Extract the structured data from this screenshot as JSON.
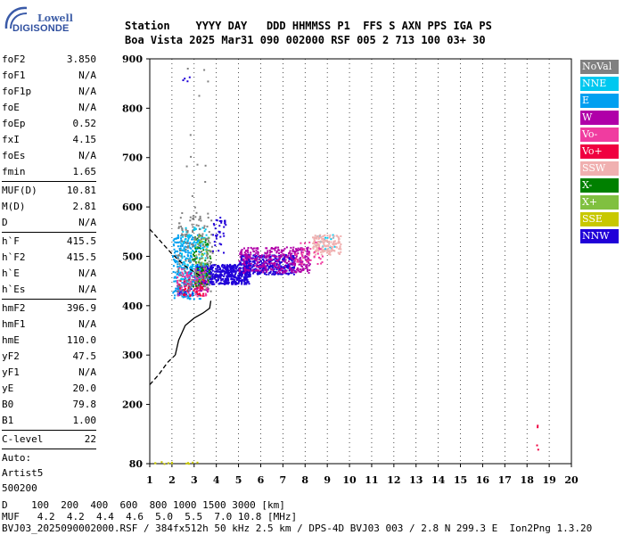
{
  "logo": {
    "line1": "Lowell",
    "line2": "DIGISONDE"
  },
  "header": {
    "labels": "Station    YYYY DAY   DDD HHMMSS P1  FFS S AXN PPS IGA PS",
    "values": "Boa Vista 2025 Mar31 090 002000 RSF 005 2 713 100 03+ 30"
  },
  "params": [
    {
      "type": "row",
      "label": "foF2",
      "value": "3.850"
    },
    {
      "type": "row",
      "label": "foF1",
      "value": "N/A"
    },
    {
      "type": "row",
      "label": "foF1p",
      "value": "N/A"
    },
    {
      "type": "row",
      "label": "foE",
      "value": "N/A"
    },
    {
      "type": "row",
      "label": "foEp",
      "value": "0.52"
    },
    {
      "type": "row",
      "label": "fxI",
      "value": "4.15"
    },
    {
      "type": "row",
      "label": "foEs",
      "value": "N/A"
    },
    {
      "type": "row",
      "label": "fmin",
      "value": "1.65"
    },
    {
      "type": "sep"
    },
    {
      "type": "row",
      "label": "MUF(D)",
      "value": "10.81"
    },
    {
      "type": "row",
      "label": "M(D)",
      "value": "2.81"
    },
    {
      "type": "row",
      "label": "D",
      "value": "N/A"
    },
    {
      "type": "sep"
    },
    {
      "type": "row",
      "label": "h`F",
      "value": "415.5"
    },
    {
      "type": "row",
      "label": "h`F2",
      "value": "415.5"
    },
    {
      "type": "row",
      "label": "h`E",
      "value": "N/A"
    },
    {
      "type": "row",
      "label": "h`Es",
      "value": "N/A"
    },
    {
      "type": "sep"
    },
    {
      "type": "row",
      "label": "hmF2",
      "value": "396.9"
    },
    {
      "type": "row",
      "label": "hmF1",
      "value": "N/A"
    },
    {
      "type": "row",
      "label": "hmE",
      "value": "110.0"
    },
    {
      "type": "row",
      "label": "yF2",
      "value": "47.5"
    },
    {
      "type": "row",
      "label": "yF1",
      "value": "N/A"
    },
    {
      "type": "row",
      "label": "yE",
      "value": "20.0"
    },
    {
      "type": "row",
      "label": "B0",
      "value": "79.8"
    },
    {
      "type": "row",
      "label": "B1",
      "value": "1.00"
    },
    {
      "type": "sep"
    },
    {
      "type": "row",
      "label": "C-level",
      "value": "22"
    },
    {
      "type": "sep"
    },
    {
      "type": "note",
      "label": "Auto:"
    },
    {
      "type": "note",
      "label": "Artist5"
    },
    {
      "type": "note",
      "label": "500200"
    }
  ],
  "legend": [
    {
      "name": "NoVal",
      "color": "#808080"
    },
    {
      "name": "NNE",
      "color": "#00c8f0"
    },
    {
      "name": "E",
      "color": "#00a0f0"
    },
    {
      "name": "W",
      "color": "#b000a8"
    },
    {
      "name": "Vo-",
      "color": "#f03ca0"
    },
    {
      "name": "Vo+",
      "color": "#f00040"
    },
    {
      "name": "SSW",
      "color": "#f0b0b0"
    },
    {
      "name": "X-",
      "color": "#008000"
    },
    {
      "name": "X+",
      "color": "#80c040"
    },
    {
      "name": "SSE",
      "color": "#c8c800"
    },
    {
      "name": "NNW",
      "color": "#2000d8"
    }
  ],
  "footer": {
    "line1": "D    100  200  400  600  800 1000 1500 3000 [km]",
    "line2": "MUF   4.2  4.2  4.4  4.6  5.0  5.5  7.0 10.8 [MHz]",
    "line3": "BVJ03_2025090002000.RSF / 384fx512h 50 kHz 2.5 km / DPS-4D BVJ03 003 / 2.8 N 299.3 E  Ion2Png 1.3.20"
  },
  "chart_data": {
    "type": "scatter",
    "xlim": [
      1,
      20
    ],
    "ylim": [
      80,
      900
    ],
    "x_ticks": [
      1,
      2,
      3,
      4,
      5,
      6,
      7,
      8,
      9,
      10,
      11,
      12,
      13,
      14,
      15,
      16,
      17,
      18,
      19,
      20
    ],
    "y_ticks": [
      80,
      200,
      300,
      400,
      500,
      600,
      700,
      800,
      900
    ],
    "grid": "dotted-x",
    "legend_position": "right",
    "series": [
      {
        "name": "NNW",
        "clusters": [
          {
            "x": [
              3.0,
              5.5
            ],
            "y": [
              445,
              485
            ],
            "n": 520
          },
          {
            "x": [
              5.0,
              7.5
            ],
            "y": [
              465,
              505
            ],
            "n": 380
          },
          {
            "x": [
              3.8,
              4.4
            ],
            "y": [
              505,
              585
            ],
            "n": 35
          },
          {
            "x": [
              2.2,
              2.9
            ],
            "y": [
              420,
              445
            ],
            "n": 40
          },
          {
            "x": [
              2.4,
              2.8
            ],
            "y": [
              846,
              872
            ],
            "n": 4
          }
        ]
      },
      {
        "name": "W",
        "clusters": [
          {
            "x": [
              5.0,
              8.2
            ],
            "y": [
              468,
              520
            ],
            "n": 340
          },
          {
            "x": [
              2.5,
              3.6
            ],
            "y": [
              430,
              470
            ],
            "n": 80
          }
        ]
      },
      {
        "name": "E",
        "clusters": [
          {
            "x": [
              2.0,
              3.3
            ],
            "y": [
              415,
              545
            ],
            "n": 260
          }
        ]
      },
      {
        "name": "NNE",
        "clusters": [
          {
            "x": [
              2.3,
              3.6
            ],
            "y": [
              450,
              560
            ],
            "n": 120
          },
          {
            "x": [
              8.4,
              9.3
            ],
            "y": [
              515,
              545
            ],
            "n": 20
          }
        ]
      },
      {
        "name": "SSW",
        "clusters": [
          {
            "x": [
              8.3,
              9.6
            ],
            "y": [
              505,
              545
            ],
            "n": 150
          }
        ]
      },
      {
        "name": "Vo-",
        "clusters": [
          {
            "x": [
              2.2,
              3.6
            ],
            "y": [
              420,
              480
            ],
            "n": 90
          },
          {
            "x": [
              7.5,
              8.8
            ],
            "y": [
              485,
              530
            ],
            "n": 40
          }
        ]
      },
      {
        "name": "Vo+",
        "clusters": [
          {
            "x": [
              2.3,
              3.4
            ],
            "y": [
              420,
              455
            ],
            "n": 50
          },
          {
            "x": [
              18.4,
              18.5
            ],
            "y": [
              155,
              165
            ],
            "n": 2
          },
          {
            "x": [
              18.4,
              18.5
            ],
            "y": [
              110,
              120
            ],
            "n": 2
          }
        ]
      },
      {
        "name": "X-",
        "clusters": [
          {
            "x": [
              2.9,
              3.7
            ],
            "y": [
              440,
              550
            ],
            "n": 60
          }
        ]
      },
      {
        "name": "X+",
        "clusters": [
          {
            "x": [
              3.0,
              3.7
            ],
            "y": [
              440,
              545
            ],
            "n": 40
          }
        ]
      },
      {
        "name": "SSE",
        "clusters": [
          {
            "x": [
              1.0,
              3.2
            ],
            "y": [
              81,
              86
            ],
            "n": 12
          }
        ]
      },
      {
        "name": "NoVal",
        "clusters": [
          {
            "x": [
              2.2,
              3.8
            ],
            "y": [
              430,
              590
            ],
            "n": 140
          },
          {
            "x": [
              2.6,
              3.6
            ],
            "y": [
              600,
              890
            ],
            "n": 12
          }
        ]
      }
    ],
    "profile_solid": {
      "x": [
        2.15,
        2.3,
        2.6,
        3.0,
        3.4,
        3.7,
        3.75
      ],
      "y": [
        300,
        330,
        360,
        375,
        385,
        395,
        410
      ]
    },
    "profile_dashed_lower": {
      "x": [
        1.0,
        1.4,
        1.8,
        2.15
      ],
      "y": [
        240,
        260,
        285,
        300
      ]
    },
    "profile_dashed_upper": {
      "x": [
        1.0,
        1.5,
        2.0,
        2.6,
        3.3
      ],
      "y": [
        555,
        530,
        505,
        480,
        460
      ]
    }
  }
}
